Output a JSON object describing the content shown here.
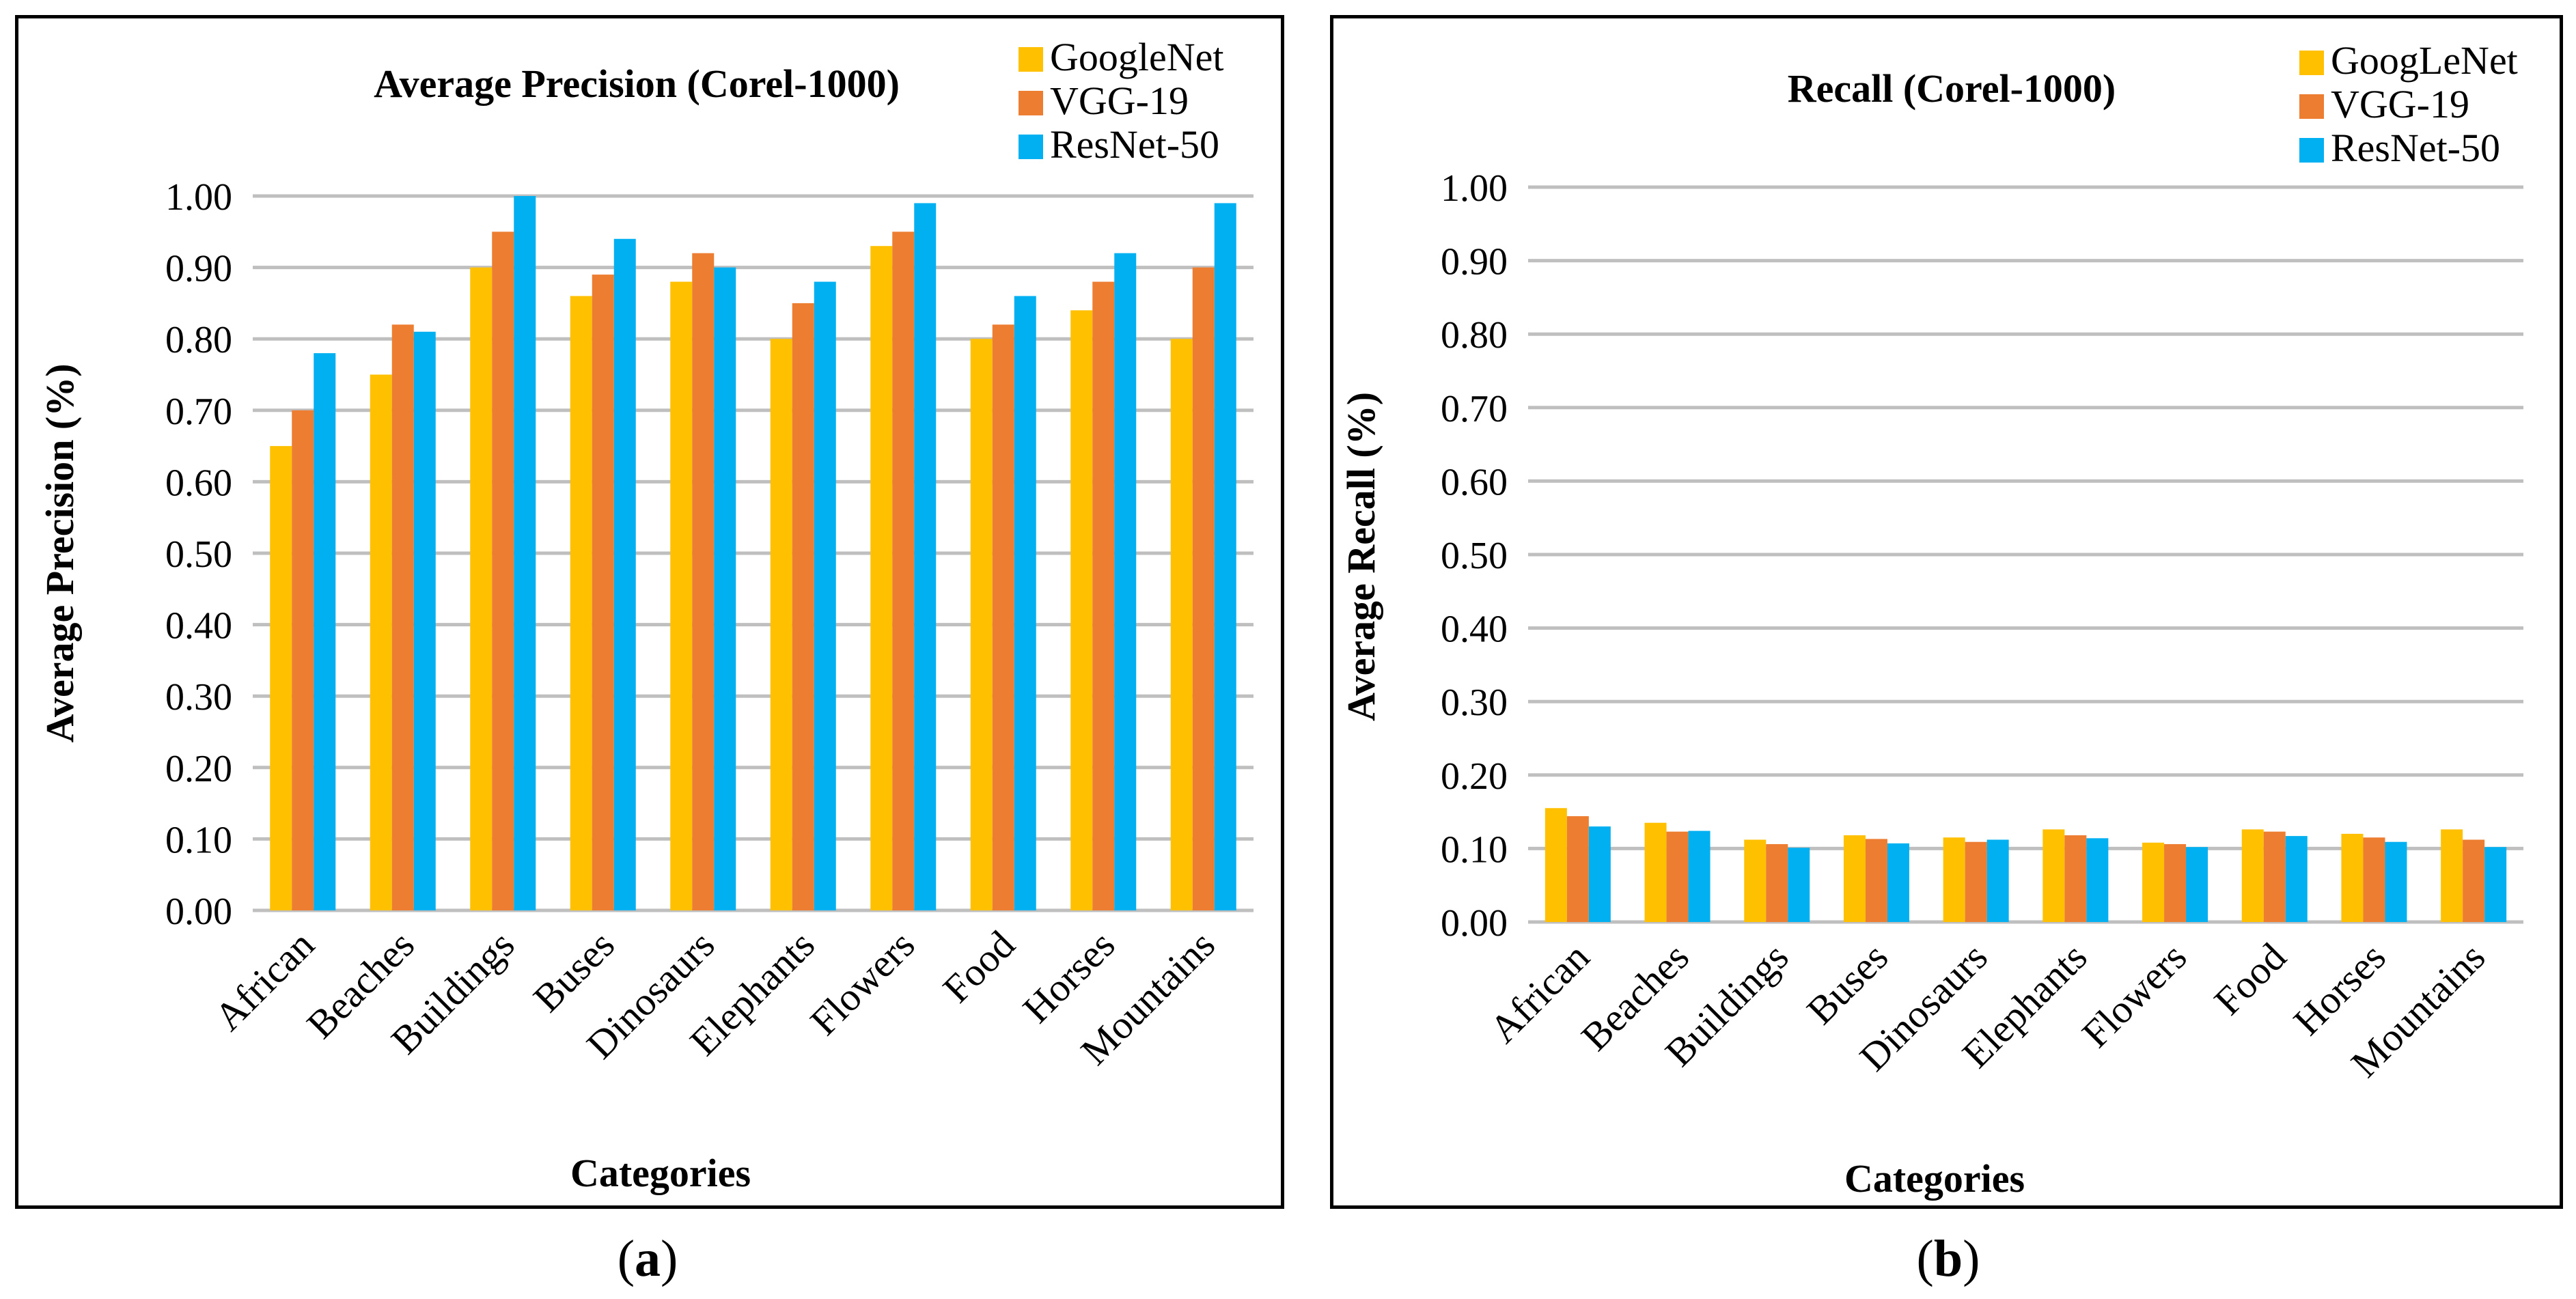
{
  "chart_data": [
    {
      "type": "bar",
      "title": "Average Precision (Corel-1000)",
      "xlabel": "Categories",
      "ylabel": "Average Precision (%)",
      "ylim": [
        0,
        1
      ],
      "yticks": [
        "0.00",
        "0.10",
        "0.20",
        "0.30",
        "0.40",
        "0.50",
        "0.60",
        "0.70",
        "0.80",
        "0.90",
        "1.00"
      ],
      "grid": true,
      "legend_position": "top-right",
      "categories": [
        "African",
        "Beaches",
        "Buildings",
        "Buses",
        "Dinosaurs",
        "Elephants",
        "Flowers",
        "Food",
        "Horses",
        "Mountains"
      ],
      "series": [
        {
          "name": "GoogleNet",
          "color": "#FFC000",
          "values": [
            0.65,
            0.75,
            0.9,
            0.86,
            0.88,
            0.8,
            0.93,
            0.8,
            0.84,
            0.8
          ]
        },
        {
          "name": "VGG-19",
          "color": "#ED7D31",
          "values": [
            0.7,
            0.82,
            0.95,
            0.89,
            0.92,
            0.85,
            0.95,
            0.82,
            0.88,
            0.9
          ]
        },
        {
          "name": "ResNet-50",
          "color": "#00B0F0",
          "values": [
            0.78,
            0.81,
            1.0,
            0.94,
            0.9,
            0.88,
            0.99,
            0.86,
            0.92,
            0.99
          ]
        }
      ]
    },
    {
      "type": "bar",
      "title": "Recall (Corel-1000)",
      "xlabel": "Categories",
      "ylabel": "Average Recall (%)",
      "ylim": [
        0,
        1
      ],
      "yticks": [
        "0.00",
        "0.10",
        "0.20",
        "0.30",
        "0.40",
        "0.50",
        "0.60",
        "0.70",
        "0.80",
        "0.90",
        "1.00"
      ],
      "grid": true,
      "legend_position": "top-right",
      "categories": [
        "African",
        "Beaches",
        "Buildings",
        "Buses",
        "Dinosaurs",
        "Elephants",
        "Flowers",
        "Food",
        "Horses",
        "Mountains"
      ],
      "series": [
        {
          "name": "GoogLeNet",
          "color": "#FFC000",
          "values": [
            0.155,
            0.135,
            0.112,
            0.118,
            0.115,
            0.126,
            0.108,
            0.126,
            0.12,
            0.126
          ]
        },
        {
          "name": "VGG-19",
          "color": "#ED7D31",
          "values": [
            0.144,
            0.123,
            0.106,
            0.113,
            0.109,
            0.118,
            0.106,
            0.123,
            0.115,
            0.112
          ]
        },
        {
          "name": "ResNet-50",
          "color": "#00B0F0",
          "values": [
            0.13,
            0.124,
            0.101,
            0.107,
            0.112,
            0.114,
            0.102,
            0.117,
            0.109,
            0.102
          ]
        }
      ]
    }
  ],
  "captions": {
    "a": "a",
    "b": "b"
  }
}
